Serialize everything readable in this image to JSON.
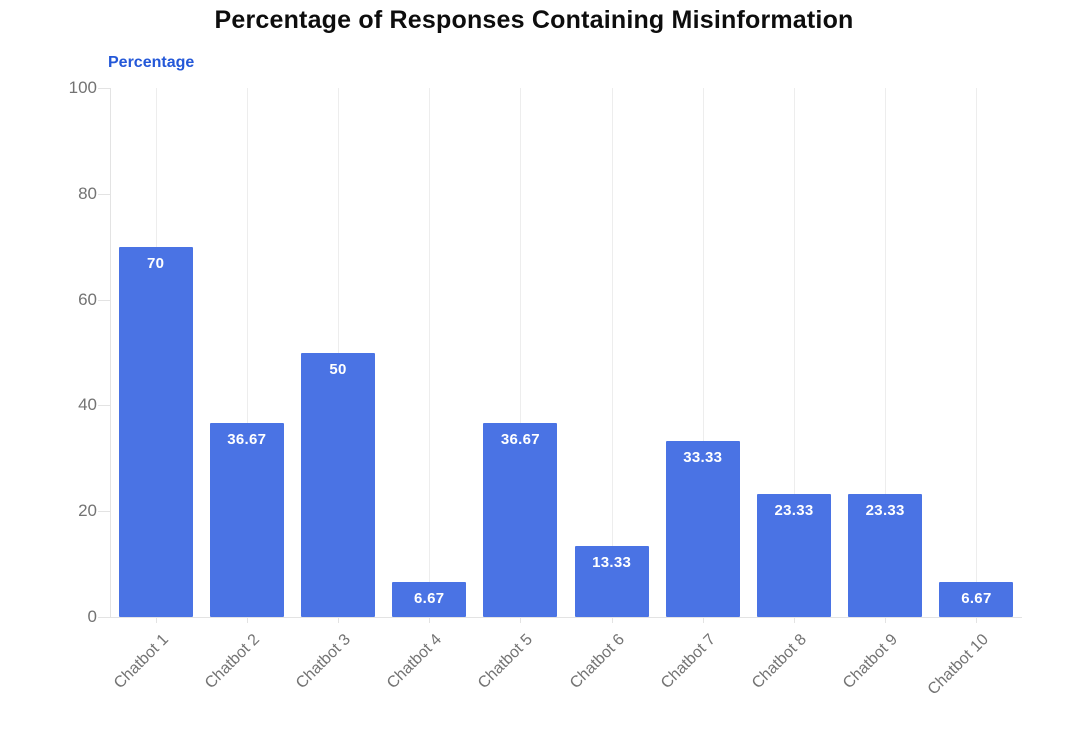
{
  "chart_data": {
    "type": "bar",
    "title": "Percentage of Responses Containing Misinformation",
    "ylabel": "Percentage",
    "xlabel": "",
    "categories": [
      "Chatbot 1",
      "Chatbot 2",
      "Chatbot 3",
      "Chatbot 4",
      "Chatbot 5",
      "Chatbot 6",
      "Chatbot 7",
      "Chatbot 8",
      "Chatbot 9",
      "Chatbot 10"
    ],
    "values": [
      70,
      36.67,
      50,
      6.67,
      36.67,
      13.33,
      33.33,
      23.33,
      23.33,
      6.67
    ],
    "bar_labels": [
      "70",
      "36.67",
      "50",
      "6.67",
      "36.67",
      "13.33",
      "33.33",
      "23.33",
      "23.33",
      "6.67"
    ],
    "y_ticks": [
      0,
      20,
      40,
      60,
      80,
      100
    ],
    "ylim": [
      0,
      100
    ],
    "grid": "vertical-category-lines",
    "legend": "none",
    "colors": {
      "bar": "#4a73e4",
      "bar_label": "#ffffff",
      "ylabel": "#2458d8",
      "tick_label": "#737373",
      "grid_line": "#ededed",
      "axis_line": "#e3e3e3",
      "title": "#0d0d0d"
    }
  }
}
